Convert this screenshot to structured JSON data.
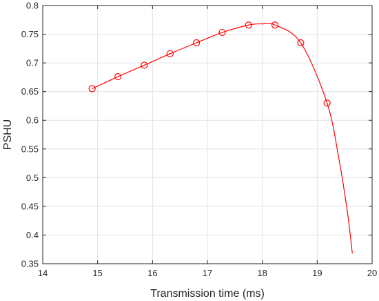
{
  "chart_data": {
    "type": "line",
    "xlabel": "Transmission time (ms)",
    "ylabel": "PSHU",
    "xlim": [
      14,
      20
    ],
    "ylim": [
      0.35,
      0.8
    ],
    "xticks": [
      "14",
      "15",
      "16",
      "17",
      "18",
      "19",
      "20"
    ],
    "yticks": [
      "0.35",
      "0.4",
      "0.45",
      "0.5",
      "0.55",
      "0.6",
      "0.65",
      "0.7",
      "0.75",
      "0.8"
    ],
    "grid": true,
    "series": [
      {
        "kind": "curve",
        "color": "#ff0000",
        "x": [
          14.9,
          15.37,
          15.85,
          16.32,
          16.8,
          17.27,
          17.75,
          18.0,
          18.23,
          18.7,
          19.18,
          19.4,
          19.55,
          19.64
        ],
        "y": [
          0.655,
          0.676,
          0.696,
          0.716,
          0.735,
          0.753,
          0.766,
          0.768,
          0.766,
          0.735,
          0.63,
          0.53,
          0.44,
          0.368
        ]
      },
      {
        "kind": "markers",
        "marker": "circle",
        "color": "#ff0000",
        "x": [
          14.9,
          15.37,
          15.85,
          16.32,
          16.8,
          17.27,
          17.75,
          18.23,
          18.7,
          19.18
        ],
        "y": [
          0.655,
          0.676,
          0.696,
          0.716,
          0.735,
          0.753,
          0.766,
          0.766,
          0.735,
          0.63
        ]
      }
    ]
  }
}
